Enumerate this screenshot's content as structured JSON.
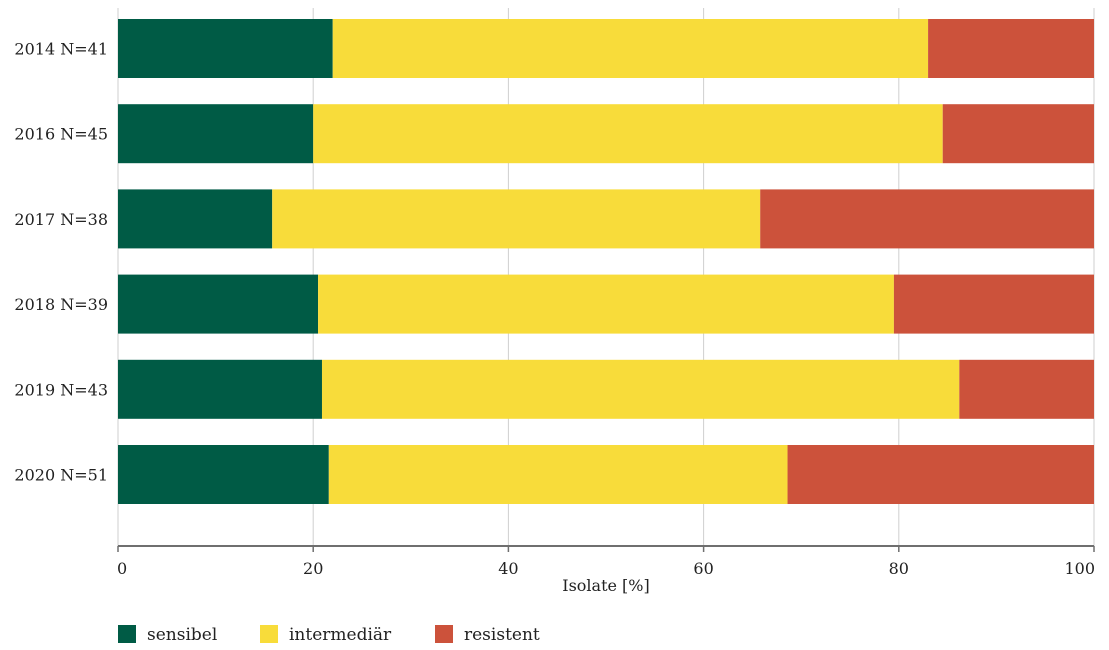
{
  "chart_data": {
    "type": "bar",
    "orientation": "horizontal",
    "stacked": true,
    "categories": [
      "2014 N=41",
      "2016 N=45",
      "2017 N=38",
      "2018 N=39",
      "2019 N=43",
      "2020 N=51"
    ],
    "series": [
      {
        "name": "sensibel",
        "color": "#005b45",
        "values": [
          22.0,
          20.0,
          15.8,
          20.5,
          20.9,
          21.6
        ]
      },
      {
        "name": "intermediär",
        "color": "#f8dc3a",
        "values": [
          61.0,
          64.5,
          50.0,
          59.0,
          65.3,
          47.0
        ]
      },
      {
        "name": "resistent",
        "color": "#cc523b",
        "values": [
          17.0,
          15.5,
          34.2,
          20.5,
          13.8,
          31.4
        ]
      }
    ],
    "title": "",
    "xlabel": "Isolate [%]",
    "ylabel": "",
    "xlim": [
      0,
      100
    ],
    "xticks": [
      0,
      20,
      40,
      60,
      80,
      100
    ],
    "grid": true,
    "legend_position": "bottom-left"
  }
}
